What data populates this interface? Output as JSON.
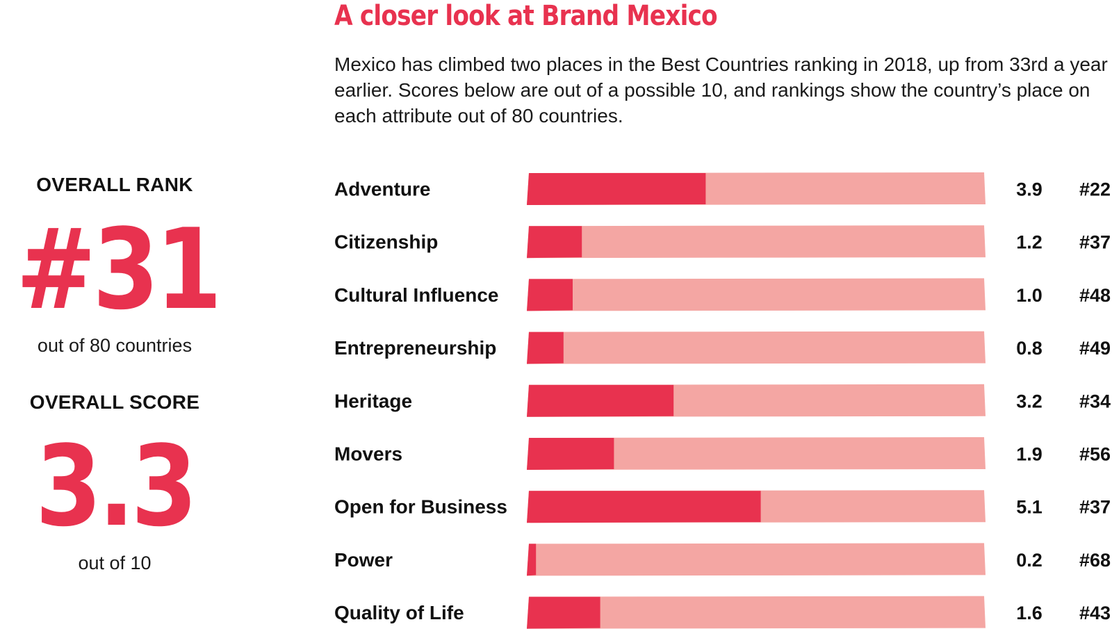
{
  "header": {
    "title": "A closer look at Brand Mexico",
    "subtitle": "Mexico has climbed two places in the Best Countries ranking in 2018, up from 33rd a year earlier. Scores below are out of a possible 10, and rankings show the country’s place on each attribute out of 80 countries."
  },
  "overall": {
    "rank_label": "OVERALL RANK",
    "rank_value": "#31",
    "rank_note": "out of 80 countries",
    "score_label": "OVERALL SCORE",
    "score_value": "3.3",
    "score_note": "out of 10"
  },
  "colors": {
    "accent": "#e8324f",
    "track": "#f4a6a3",
    "text": "#111111"
  },
  "chart_data": {
    "type": "bar",
    "orientation": "horizontal",
    "xlim": [
      0,
      10
    ],
    "categories": [
      "Adventure",
      "Citizenship",
      "Cultural Influence",
      "Entrepreneurship",
      "Heritage",
      "Movers",
      "Open for Business",
      "Power",
      "Quality of Life"
    ],
    "values": [
      3.9,
      1.2,
      1.0,
      0.8,
      3.2,
      1.9,
      5.1,
      0.2,
      1.6
    ],
    "value_labels": [
      "3.9",
      "1.2",
      "1.0",
      "0.8",
      "3.2",
      "1.9",
      "5.1",
      "0.2",
      "1.6"
    ],
    "ranks": [
      "#22",
      "#37",
      "#48",
      "#49",
      "#34",
      "#56",
      "#37",
      "#68",
      "#43"
    ],
    "grid": false,
    "legend": "none"
  }
}
